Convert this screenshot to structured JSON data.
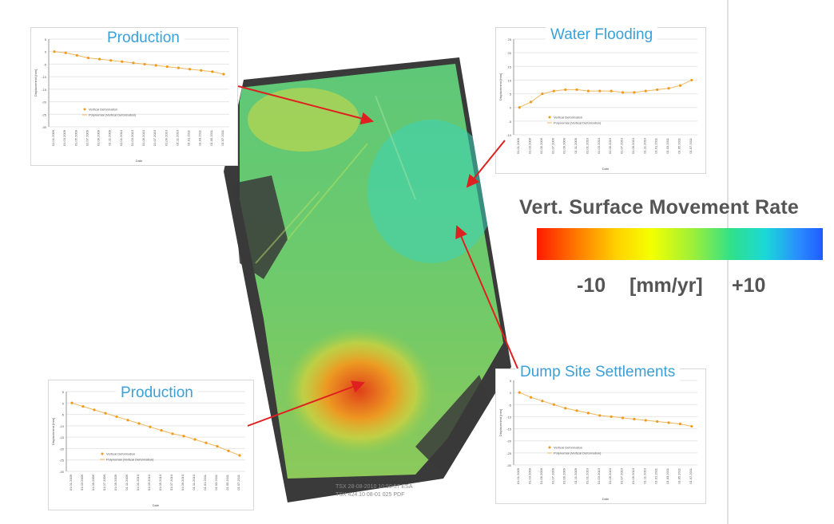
{
  "legend": {
    "title": "Vert. Surface Movement Rate",
    "min_label": "-10",
    "unit_label": "[mm/yr]",
    "max_label": "+10",
    "colors": [
      "#ff1a00",
      "#ffd200",
      "#9aef3a",
      "#1ad8d8",
      "#1f5cff"
    ]
  },
  "panels": [
    {
      "id": "production-top",
      "title": "Production",
      "ylabel": "Displacement [mm]",
      "xlabel": "Date",
      "legend": [
        "Vertical Deformation",
        "Polynomial (Vertical Deformation)"
      ]
    },
    {
      "id": "water-flooding",
      "title": "Water Flooding",
      "ylabel": "Displacement [mm]",
      "xlabel": "Date",
      "legend": [
        "Vertical Deformation",
        "Polynomial (Vertical Deformation)"
      ]
    },
    {
      "id": "production-bottom",
      "title": "Production",
      "ylabel": "Displacement [mm]",
      "xlabel": "Date",
      "legend": [
        "Vertical Deformation",
        "Polynomial (Vertical Deformation)"
      ]
    },
    {
      "id": "dump-site",
      "title": "Dump Site Settlements",
      "ylabel": "Displacement [mm]",
      "xlabel": "Date",
      "legend": [
        "Vertical Deformation",
        "Polynomial (Vertical Deformation)"
      ]
    }
  ],
  "chart_data": [
    {
      "type": "scatter",
      "title": "Production",
      "ylabel": "Displacement [mm]",
      "xlabel": "Date",
      "ylim": [
        -30,
        5
      ],
      "x": [
        "01.01.2009",
        "01.03.2009",
        "01.05.2009",
        "01.07.2009",
        "01.09.2009",
        "01.11.2009",
        "01.01.2010",
        "01.03.2010",
        "01.05.2010",
        "01.07.2010",
        "01.09.2010",
        "01.11.2010",
        "01.01.2011",
        "01.03.2011",
        "01.05.2011",
        "01.07.2011"
      ],
      "series": [
        {
          "name": "Vertical Deformation",
          "values": [
            0,
            -0.5,
            -1.5,
            -2.5,
            -3,
            -3.5,
            -4,
            -4.5,
            -5,
            -5.5,
            -6,
            -6.5,
            -7,
            -7.5,
            -8,
            -9
          ]
        }
      ]
    },
    {
      "type": "scatter",
      "title": "Water Flooding",
      "ylabel": "Displacement [mm]",
      "xlabel": "Date",
      "ylim": [
        -10,
        25
      ],
      "x": [
        "01.01.2009",
        "01.03.2009",
        "01.05.2009",
        "01.07.2009",
        "01.09.2009",
        "01.11.2009",
        "01.01.2010",
        "01.03.2010",
        "01.05.2010",
        "01.07.2010",
        "01.09.2010",
        "01.11.2010",
        "01.01.2011",
        "01.03.2011",
        "01.05.2011",
        "01.07.2011"
      ],
      "series": [
        {
          "name": "Vertical Deformation",
          "values": [
            0,
            2,
            5,
            6,
            6.5,
            6.5,
            6,
            6,
            6,
            5.5,
            5.5,
            6,
            6.5,
            7,
            8,
            10
          ]
        }
      ]
    },
    {
      "type": "scatter",
      "title": "Production",
      "ylabel": "Displacement [mm]",
      "xlabel": "Date",
      "ylim": [
        -30,
        5
      ],
      "x": [
        "01.01.2009",
        "01.03.2009",
        "01.05.2009",
        "01.07.2009",
        "01.09.2009",
        "01.11.2009",
        "01.01.2010",
        "01.03.2010",
        "01.05.2010",
        "01.07.2010",
        "01.09.2010",
        "01.11.2010",
        "01.01.2011",
        "01.03.2011",
        "01.05.2011",
        "01.07.2011"
      ],
      "series": [
        {
          "name": "Vertical Deformation",
          "values": [
            0,
            -1.5,
            -3,
            -4.5,
            -6,
            -7.5,
            -9,
            -10.5,
            -12,
            -13.5,
            -14.5,
            -16,
            -17.5,
            -19,
            -21,
            -23
          ]
        }
      ]
    },
    {
      "type": "scatter",
      "title": "Dump Site Settlements",
      "ylabel": "Displacement [mm]",
      "xlabel": "Date",
      "ylim": [
        -30,
        5
      ],
      "x": [
        "01.01.2009",
        "01.03.2009",
        "01.05.2009",
        "01.07.2009",
        "01.09.2009",
        "01.11.2009",
        "01.01.2010",
        "01.03.2010",
        "01.05.2010",
        "01.07.2010",
        "01.09.2010",
        "01.11.2010",
        "01.01.2011",
        "01.03.2011",
        "01.05.2011",
        "01.07.2011"
      ],
      "series": [
        {
          "name": "Vertical Deformation",
          "values": [
            0,
            -2,
            -3.5,
            -5,
            -6.5,
            -7.5,
            -8.5,
            -9.5,
            -10,
            -10.5,
            -11,
            -11.5,
            -12,
            -12.5,
            -13,
            -14
          ]
        }
      ]
    }
  ],
  "map": {
    "caption_line1": "TSX 28-08-2010 10:50:57 ESA",
    "caption_line2": "TSX 424.10 08-01 025 PDF"
  }
}
